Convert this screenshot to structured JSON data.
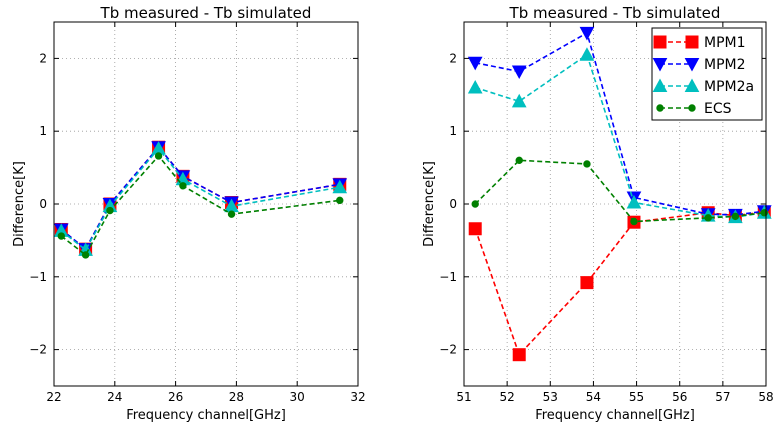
{
  "chart_data": [
    {
      "type": "line",
      "title": "Tb measured - Tb simulated",
      "xlabel": "Frequency channel[GHz]",
      "ylabel": "Difference[K]",
      "xlim": [
        22,
        32
      ],
      "ylim": [
        -2.5,
        2.5
      ],
      "xticks": [
        22,
        24,
        26,
        28,
        30,
        32
      ],
      "xtick_labels": [
        "22",
        "24",
        "26",
        "28",
        "30",
        "32"
      ],
      "yticks": [
        -2,
        -1,
        0,
        1,
        2
      ],
      "ytick_labels": [
        "−2",
        "−1",
        "0",
        "1",
        "2"
      ],
      "grid": true,
      "legend": null,
      "x": [
        22.24,
        23.04,
        23.84,
        25.44,
        26.24,
        27.84,
        31.4
      ],
      "series": [
        {
          "name": "MPM1",
          "color": "#ff0000",
          "marker": "square",
          "values": [
            -0.35,
            -0.62,
            0.0,
            0.78,
            0.38,
            0.02,
            0.27
          ]
        },
        {
          "name": "MPM2",
          "color": "#0000ff",
          "marker": "triangle-down",
          "values": [
            -0.35,
            -0.62,
            0.0,
            0.78,
            0.38,
            0.02,
            0.27
          ]
        },
        {
          "name": "MPM2a",
          "color": "#00bfbf",
          "marker": "triangle-up",
          "values": [
            -0.37,
            -0.63,
            -0.03,
            0.76,
            0.34,
            -0.03,
            0.23
          ]
        },
        {
          "name": "ECS",
          "color": "#008000",
          "marker": "circle",
          "values": [
            -0.44,
            -0.7,
            -0.09,
            0.66,
            0.25,
            -0.14,
            0.05
          ]
        }
      ]
    },
    {
      "type": "line",
      "title": "Tb measured - Tb simulated",
      "xlabel": "Frequency channel[GHz]",
      "ylabel": "Difference[K]",
      "xlim": [
        51,
        58
      ],
      "ylim": [
        -2.5,
        2.5
      ],
      "xticks": [
        51,
        52,
        53,
        54,
        55,
        56,
        57,
        58
      ],
      "xtick_labels": [
        "51",
        "52",
        "53",
        "54",
        "55",
        "56",
        "57",
        "58"
      ],
      "yticks": [
        -2,
        -1,
        0,
        1,
        2
      ],
      "ytick_labels": [
        "−2",
        "−1",
        "0",
        "1",
        "2"
      ],
      "grid": true,
      "legend": "top-right",
      "x": [
        51.26,
        52.28,
        53.85,
        54.94,
        56.66,
        57.29,
        57.96
      ],
      "series": [
        {
          "name": "MPM1",
          "color": "#ff0000",
          "marker": "square",
          "values": [
            -0.34,
            -2.07,
            -1.08,
            -0.25,
            -0.12,
            -0.16,
            -0.11
          ]
        },
        {
          "name": "MPM2",
          "color": "#0000ff",
          "marker": "triangle-down",
          "values": [
            1.94,
            1.82,
            2.35,
            0.09,
            -0.14,
            -0.15,
            -0.1
          ]
        },
        {
          "name": "MPM2a",
          "color": "#00bfbf",
          "marker": "triangle-up",
          "values": [
            1.6,
            1.41,
            2.05,
            0.02,
            -0.16,
            -0.18,
            -0.12
          ]
        },
        {
          "name": "ECS",
          "color": "#008000",
          "marker": "circle",
          "values": [
            0.0,
            0.6,
            0.55,
            -0.24,
            -0.19,
            -0.17,
            -0.12
          ]
        }
      ]
    }
  ]
}
